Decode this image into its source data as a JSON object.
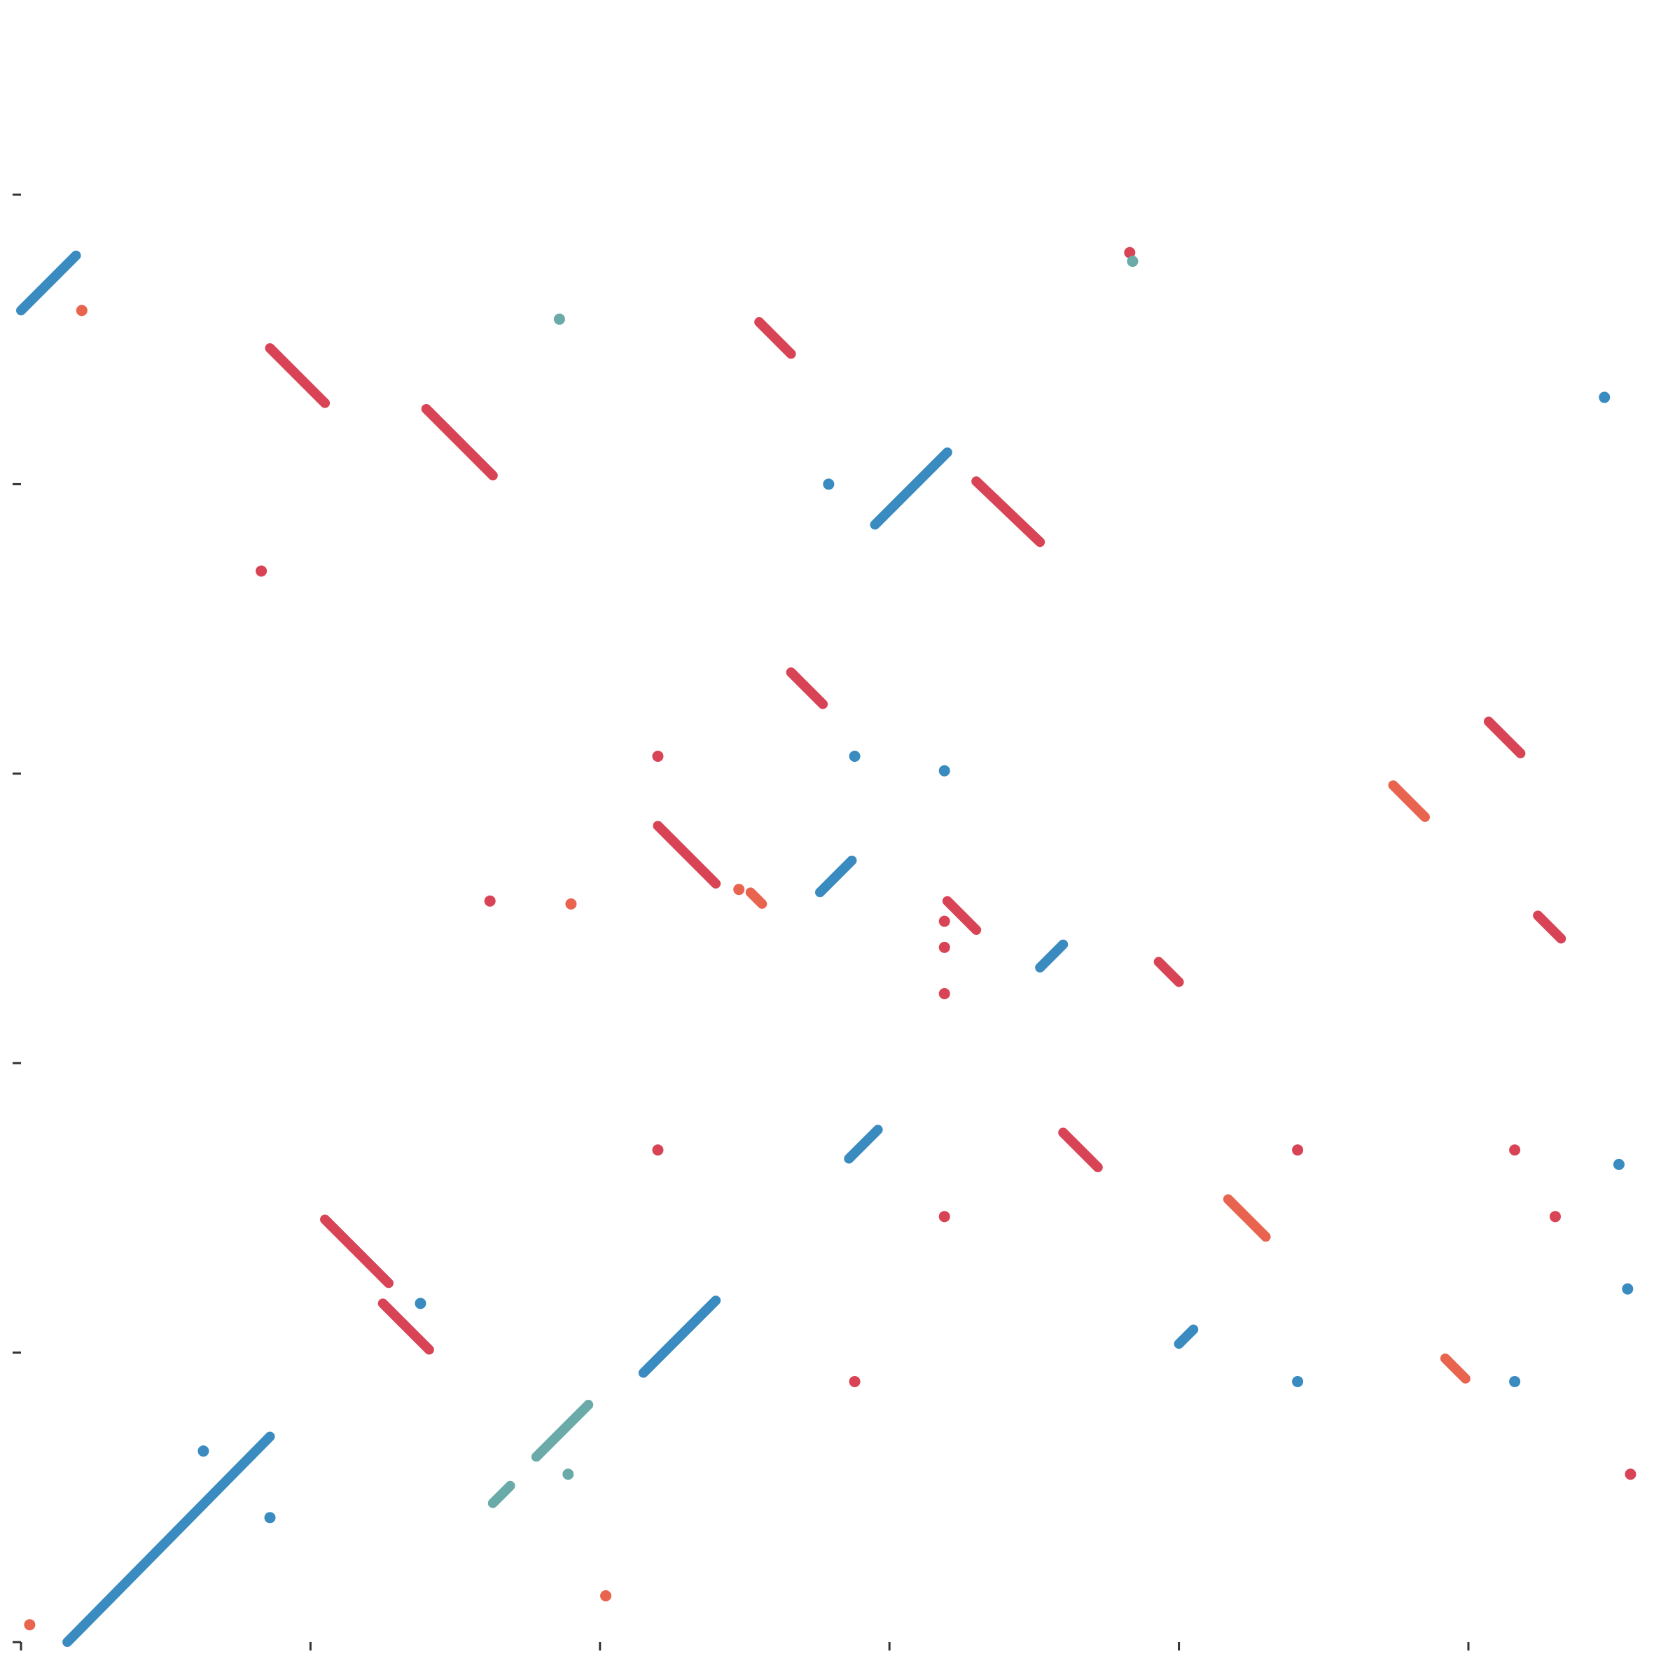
{
  "chart_data": {
    "type": "scatter",
    "title": "",
    "xlabel": "",
    "ylabel": "",
    "xlim": [
      0,
      5.6
    ],
    "ylim": [
      0,
      5.6
    ],
    "xticks": [
      0,
      1,
      2,
      3,
      4,
      5
    ],
    "yticks": [
      0,
      1,
      2,
      3,
      4,
      5
    ],
    "tick_labels_visible": false,
    "grid": false,
    "legend": "none",
    "colors": {
      "blue": "#3a8bc0",
      "red": "#d84455",
      "orange": "#e8644f",
      "teal": "#6aaaa8"
    },
    "segments": [
      {
        "color": "blue",
        "from": [
          0.0,
          4.6
        ],
        "to": [
          0.19,
          4.79
        ]
      },
      {
        "color": "blue",
        "from": [
          0.16,
          0.0
        ],
        "to": [
          0.86,
          0.71
        ]
      },
      {
        "color": "blue",
        "from": [
          2.15,
          0.93
        ],
        "to": [
          2.4,
          1.18
        ]
      },
      {
        "color": "teal",
        "from": [
          1.63,
          0.48
        ],
        "to": [
          1.69,
          0.54
        ]
      },
      {
        "color": "teal",
        "from": [
          1.78,
          0.64
        ],
        "to": [
          1.96,
          0.82
        ]
      },
      {
        "color": "blue",
        "from": [
          2.95,
          3.86
        ],
        "to": [
          3.2,
          4.11
        ]
      },
      {
        "color": "blue",
        "from": [
          2.76,
          2.59
        ],
        "to": [
          2.87,
          2.7
        ]
      },
      {
        "color": "blue",
        "from": [
          2.86,
          1.67
        ],
        "to": [
          2.96,
          1.77
        ]
      },
      {
        "color": "blue",
        "from": [
          3.52,
          2.33
        ],
        "to": [
          3.6,
          2.41
        ]
      },
      {
        "color": "blue",
        "from": [
          4.0,
          1.03
        ],
        "to": [
          4.05,
          1.08
        ]
      },
      {
        "color": "red",
        "from": [
          0.86,
          4.47
        ],
        "to": [
          1.05,
          4.28
        ]
      },
      {
        "color": "red",
        "from": [
          1.4,
          4.26
        ],
        "to": [
          1.63,
          4.03
        ]
      },
      {
        "color": "red",
        "from": [
          2.55,
          4.56
        ],
        "to": [
          2.66,
          4.45
        ]
      },
      {
        "color": "red",
        "from": [
          3.3,
          4.01
        ],
        "to": [
          3.52,
          3.8
        ]
      },
      {
        "color": "red",
        "from": [
          2.66,
          3.35
        ],
        "to": [
          2.77,
          3.24
        ]
      },
      {
        "color": "red",
        "from": [
          2.2,
          2.82
        ],
        "to": [
          2.4,
          2.62
        ]
      },
      {
        "color": "orange",
        "from": [
          2.52,
          2.59
        ],
        "to": [
          2.56,
          2.55
        ]
      },
      {
        "color": "red",
        "from": [
          1.05,
          1.46
        ],
        "to": [
          1.27,
          1.24
        ]
      },
      {
        "color": "red",
        "from": [
          1.25,
          1.17
        ],
        "to": [
          1.41,
          1.01
        ]
      },
      {
        "color": "red",
        "from": [
          3.2,
          2.56
        ],
        "to": [
          3.3,
          2.46
        ]
      },
      {
        "color": "red",
        "from": [
          3.6,
          1.76
        ],
        "to": [
          3.72,
          1.64
        ]
      },
      {
        "color": "red",
        "from": [
          3.93,
          2.35
        ],
        "to": [
          4.0,
          2.28
        ]
      },
      {
        "color": "orange",
        "from": [
          4.17,
          1.53
        ],
        "to": [
          4.3,
          1.4
        ]
      },
      {
        "color": "orange",
        "from": [
          4.74,
          2.96
        ],
        "to": [
          4.85,
          2.85
        ]
      },
      {
        "color": "red",
        "from": [
          5.07,
          3.18
        ],
        "to": [
          5.18,
          3.07
        ]
      },
      {
        "color": "red",
        "from": [
          5.24,
          2.51
        ],
        "to": [
          5.32,
          2.43
        ]
      },
      {
        "color": "orange",
        "from": [
          4.92,
          0.98
        ],
        "to": [
          4.99,
          0.91
        ]
      }
    ],
    "points": [
      {
        "color": "orange",
        "x": 0.21,
        "y": 4.6
      },
      {
        "color": "orange",
        "x": 0.03,
        "y": 0.06
      },
      {
        "color": "teal",
        "x": 1.86,
        "y": 4.57
      },
      {
        "color": "red",
        "x": 0.83,
        "y": 3.7
      },
      {
        "color": "blue",
        "x": 2.79,
        "y": 4.0
      },
      {
        "color": "red",
        "x": 3.83,
        "y": 4.8
      },
      {
        "color": "teal",
        "x": 3.84,
        "y": 4.77
      },
      {
        "color": "blue",
        "x": 5.47,
        "y": 4.3
      },
      {
        "color": "red",
        "x": 2.2,
        "y": 3.06
      },
      {
        "color": "blue",
        "x": 2.88,
        "y": 3.06
      },
      {
        "color": "blue",
        "x": 3.19,
        "y": 3.01
      },
      {
        "color": "red",
        "x": 1.62,
        "y": 2.56
      },
      {
        "color": "orange",
        "x": 1.9,
        "y": 2.55
      },
      {
        "color": "orange",
        "x": 2.48,
        "y": 2.6
      },
      {
        "color": "red",
        "x": 3.19,
        "y": 2.49
      },
      {
        "color": "red",
        "x": 3.19,
        "y": 2.4
      },
      {
        "color": "red",
        "x": 3.19,
        "y": 2.24
      },
      {
        "color": "red",
        "x": 2.2,
        "y": 1.7
      },
      {
        "color": "red",
        "x": 3.19,
        "y": 1.47
      },
      {
        "color": "red",
        "x": 2.88,
        "y": 0.9
      },
      {
        "color": "orange",
        "x": 2.02,
        "y": 0.16
      },
      {
        "color": "blue",
        "x": 0.63,
        "y": 0.66
      },
      {
        "color": "blue",
        "x": 0.86,
        "y": 0.43
      },
      {
        "color": "teal",
        "x": 1.89,
        "y": 0.58
      },
      {
        "color": "blue",
        "x": 1.38,
        "y": 1.17
      },
      {
        "color": "red",
        "x": 4.41,
        "y": 1.7
      },
      {
        "color": "blue",
        "x": 4.41,
        "y": 0.9
      },
      {
        "color": "blue",
        "x": 5.16,
        "y": 0.9
      },
      {
        "color": "red",
        "x": 5.16,
        "y": 1.7
      },
      {
        "color": "red",
        "x": 5.3,
        "y": 1.47
      },
      {
        "color": "red",
        "x": 5.56,
        "y": 0.58
      },
      {
        "color": "blue",
        "x": 5.52,
        "y": 1.65
      },
      {
        "color": "blue",
        "x": 5.55,
        "y": 1.22
      }
    ]
  }
}
